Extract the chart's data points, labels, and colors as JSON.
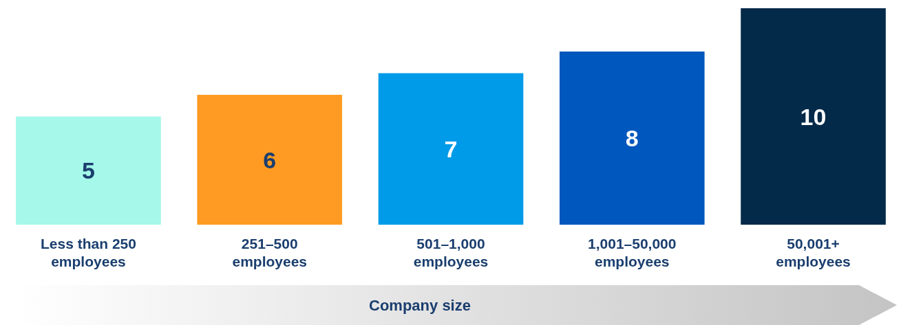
{
  "chart_data": {
    "type": "bar",
    "xlabel": "Company size",
    "categories": [
      "Less than 250 employees",
      "251–500 employees",
      "501–1,000 employees",
      "1,001–50,000 employees",
      "50,001+ employees"
    ],
    "values": [
      5,
      6,
      7,
      8,
      10
    ],
    "colors": [
      "#a5f8ea",
      "#ff9b22",
      "#009be8",
      "#0057be",
      "#042a4a"
    ],
    "ylim": [
      0,
      10
    ],
    "tick_labels": "x",
    "data_labels": true
  }
}
